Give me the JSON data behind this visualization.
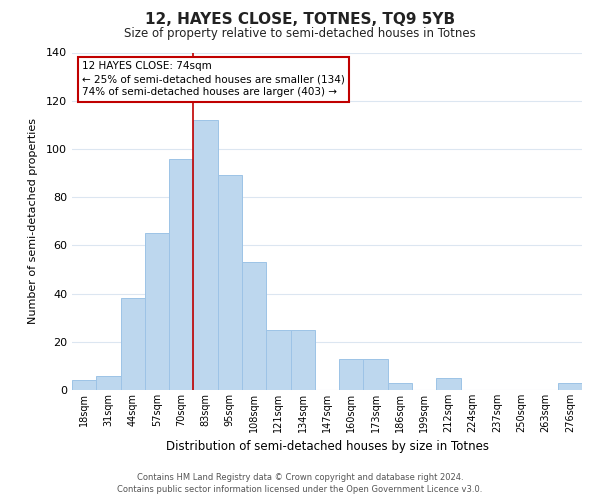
{
  "title": "12, HAYES CLOSE, TOTNES, TQ9 5YB",
  "subtitle": "Size of property relative to semi-detached houses in Totnes",
  "xlabel": "Distribution of semi-detached houses by size in Totnes",
  "ylabel": "Number of semi-detached properties",
  "categories": [
    "18sqm",
    "31sqm",
    "44sqm",
    "57sqm",
    "70sqm",
    "83sqm",
    "95sqm",
    "108sqm",
    "121sqm",
    "134sqm",
    "147sqm",
    "160sqm",
    "173sqm",
    "186sqm",
    "199sqm",
    "212sqm",
    "224sqm",
    "237sqm",
    "250sqm",
    "263sqm",
    "276sqm"
  ],
  "values": [
    4,
    6,
    38,
    65,
    96,
    112,
    89,
    53,
    25,
    25,
    0,
    13,
    13,
    3,
    0,
    5,
    0,
    0,
    0,
    0,
    3
  ],
  "bar_color": "#bdd7ee",
  "bar_edge_color": "#9dc3e6",
  "highlight_index": 4,
  "highlight_line_color": "#c00000",
  "ylim": [
    0,
    140
  ],
  "yticks": [
    0,
    20,
    40,
    60,
    80,
    100,
    120,
    140
  ],
  "annotation_title": "12 HAYES CLOSE: 74sqm",
  "annotation_line1": "← 25% of semi-detached houses are smaller (134)",
  "annotation_line2": "74% of semi-detached houses are larger (403) →",
  "annotation_box_edge": "#c00000",
  "footer_line1": "Contains HM Land Registry data © Crown copyright and database right 2024.",
  "footer_line2": "Contains public sector information licensed under the Open Government Licence v3.0.",
  "background_color": "#ffffff",
  "grid_color": "#dce6f1"
}
